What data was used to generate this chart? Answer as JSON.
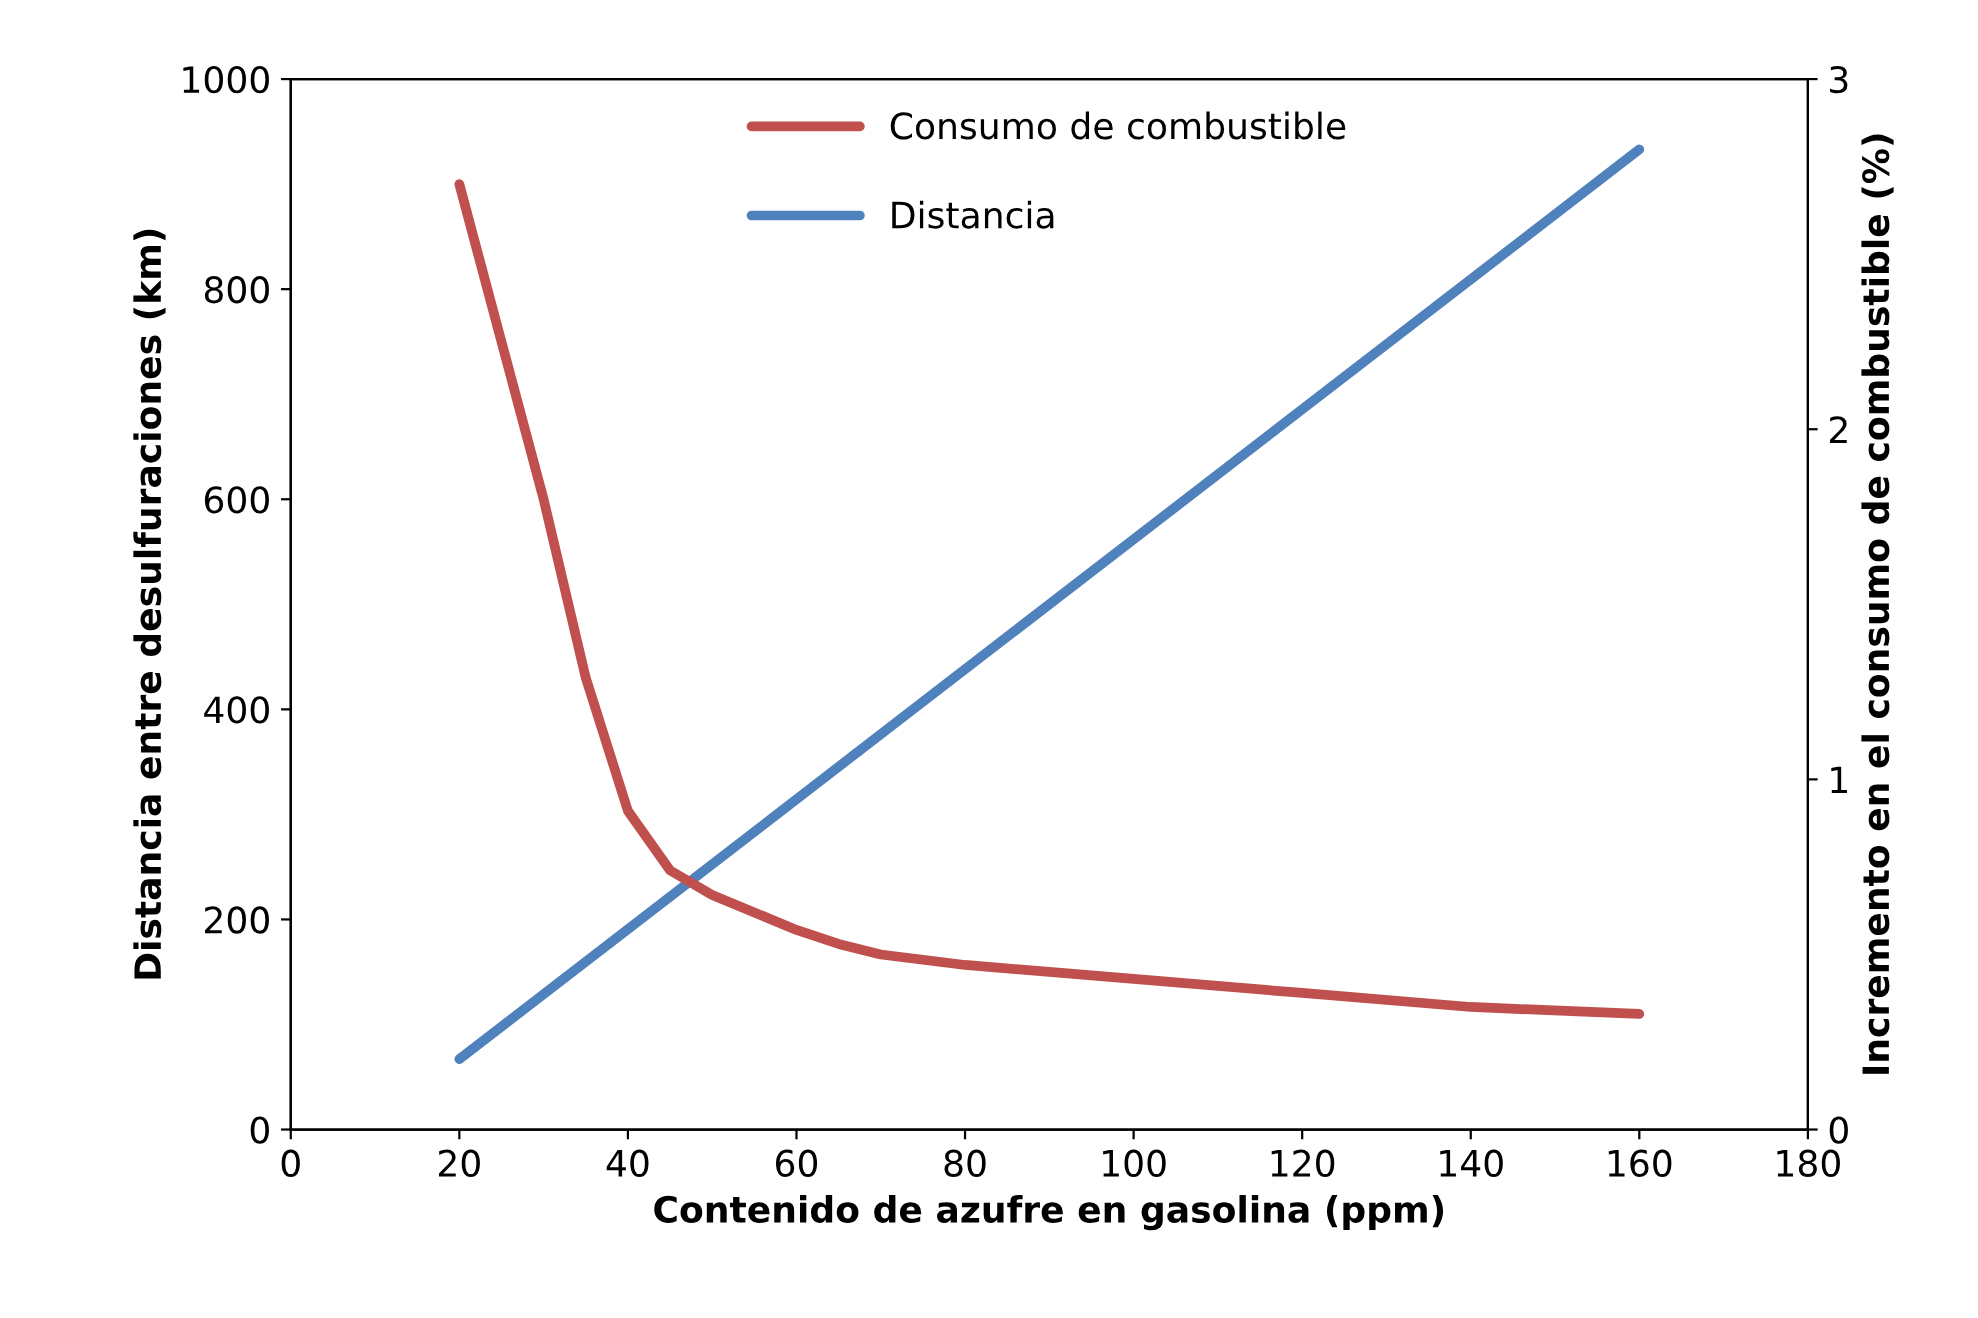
{
  "chart_data": {
    "type": "line",
    "xlabel": "Contenido de azufre en gasolina (ppm)",
    "ylabel": "Distancia entre desulfuraciones (km)",
    "y2label": "Incremento en el consumo de combustible (%)",
    "xlim": [
      0,
      180
    ],
    "xticks": [
      0,
      20,
      40,
      60,
      80,
      100,
      120,
      140,
      160,
      180
    ],
    "ylim": [
      0,
      1000
    ],
    "yticks": [
      0,
      200,
      400,
      600,
      800,
      1000
    ],
    "y2lim": [
      0,
      3
    ],
    "y2ticks": [
      0,
      1,
      2,
      3
    ],
    "legend": "top",
    "grid": false,
    "marker": "none",
    "line_style": "solid",
    "series": [
      {
        "name": "Consumo de combustible",
        "color": "#c0504d",
        "axis": "y2",
        "x": [
          20,
          25,
          30,
          35,
          40,
          45,
          50,
          55,
          60,
          65,
          70,
          80,
          90,
          100,
          120,
          140,
          160
        ],
        "values": [
          2.7,
          2.25,
          1.8,
          1.29,
          0.91,
          0.74,
          0.67,
          0.62,
          0.57,
          0.53,
          0.5,
          0.47,
          0.45,
          0.43,
          0.39,
          0.35,
          0.33
        ]
      },
      {
        "name": "Distancia",
        "color": "#4f81bd",
        "x": [
          20,
          160
        ],
        "values": [
          67,
          933
        ]
      }
    ]
  }
}
